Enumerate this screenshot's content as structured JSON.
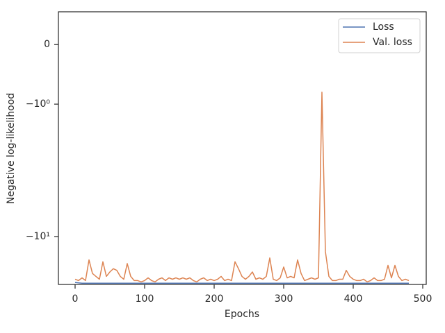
{
  "chart_data": {
    "type": "line",
    "xlabel": "Epochs",
    "ylabel": "Negative log-likelihood",
    "yscale": "symlog",
    "x": [
      0,
      5,
      10,
      15,
      20,
      25,
      30,
      35,
      40,
      45,
      50,
      55,
      60,
      65,
      70,
      75,
      80,
      85,
      90,
      95,
      100,
      105,
      110,
      115,
      120,
      125,
      130,
      135,
      140,
      145,
      150,
      155,
      160,
      165,
      170,
      175,
      180,
      185,
      190,
      195,
      200,
      205,
      210,
      215,
      220,
      225,
      230,
      235,
      240,
      245,
      250,
      255,
      260,
      265,
      270,
      275,
      280,
      285,
      290,
      295,
      300,
      305,
      310,
      315,
      320,
      325,
      330,
      335,
      340,
      345,
      350,
      355,
      360,
      365,
      370,
      375,
      380,
      385,
      390,
      395,
      400,
      405,
      410,
      415,
      420,
      425,
      430,
      435,
      440,
      445,
      450,
      455,
      460,
      465,
      470,
      475,
      480
    ],
    "series": [
      {
        "name": "Loss",
        "color": "#4c72b0",
        "values": [
          -22.2,
          -22.4,
          -22.5,
          -22.5,
          -22.5,
          -22.5,
          -22.5,
          -22.5,
          -22.5,
          -22.5,
          -22.5,
          -22.5,
          -22.5,
          -22.5,
          -22.5,
          -22.5,
          -22.5,
          -22.5,
          -22.5,
          -22.5,
          -22.5,
          -22.5,
          -22.5,
          -22.5,
          -22.5,
          -22.5,
          -22.5,
          -22.5,
          -22.5,
          -22.5,
          -22.5,
          -22.5,
          -22.5,
          -22.5,
          -22.5,
          -22.5,
          -22.5,
          -22.5,
          -22.5,
          -22.5,
          -22.5,
          -22.5,
          -22.5,
          -22.5,
          -22.5,
          -22.5,
          -22.5,
          -22.5,
          -22.5,
          -22.5,
          -22.5,
          -22.5,
          -22.5,
          -22.5,
          -22.5,
          -22.5,
          -22.5,
          -22.5,
          -22.5,
          -22.5,
          -22.5,
          -22.5,
          -22.5,
          -22.5,
          -22.5,
          -22.5,
          -22.5,
          -22.5,
          -22.5,
          -22.5,
          -22.5,
          -22.5,
          -22.5,
          -22.5,
          -22.5,
          -22.5,
          -22.5,
          -22.5,
          -22.5,
          -22.5,
          -22.5,
          -22.5,
          -22.5,
          -22.5,
          -22.5,
          -22.5,
          -22.5,
          -22.5,
          -22.5,
          -22.5,
          -22.5,
          -22.5,
          -22.5,
          -22.5,
          -22.5,
          -22.5,
          -22.5
        ]
      },
      {
        "name": "Val. loss",
        "color": "#dd8452",
        "values": [
          -21,
          -21.5,
          -20.5,
          -21.5,
          -15,
          -19,
          -20,
          -21,
          -15.5,
          -20,
          -18.5,
          -17.5,
          -18,
          -20,
          -21,
          -16,
          -20,
          -21.5,
          -21.5,
          -22,
          -21.5,
          -20.5,
          -21.5,
          -22,
          -21,
          -20.5,
          -21.5,
          -20.5,
          -21,
          -20.5,
          -21,
          -20.5,
          -21,
          -20.5,
          -21.5,
          -22,
          -21,
          -20.5,
          -21.5,
          -21,
          -21.5,
          -21,
          -20,
          -21.5,
          -21,
          -21.5,
          -15.5,
          -17.5,
          -20,
          -21,
          -20,
          -18.5,
          -21,
          -20.5,
          -21,
          -20,
          -14.5,
          -21,
          -21.5,
          -20.5,
          -17,
          -20.5,
          -20,
          -20.5,
          -15,
          -19,
          -21.5,
          -21,
          -20.5,
          -21,
          -20.5,
          -0.8,
          -13,
          -20,
          -21.5,
          -21.5,
          -21,
          -21,
          -18,
          -20,
          -21,
          -21.5,
          -21.5,
          -21,
          -22,
          -21.5,
          -20.5,
          -21.5,
          -21.5,
          -21,
          -16.5,
          -20.5,
          -16.5,
          -20,
          -21.5,
          -21,
          -21.5
        ]
      }
    ],
    "xlim": [
      -24,
      505
    ],
    "xticks": [
      0,
      100,
      200,
      300,
      400,
      500
    ],
    "ylim": [
      -23,
      0.55
    ],
    "yticks": [
      {
        "value": -10,
        "label": "−10¹"
      },
      {
        "value": -1,
        "label": "−10⁰"
      },
      0
    ],
    "legend": "upper right"
  }
}
